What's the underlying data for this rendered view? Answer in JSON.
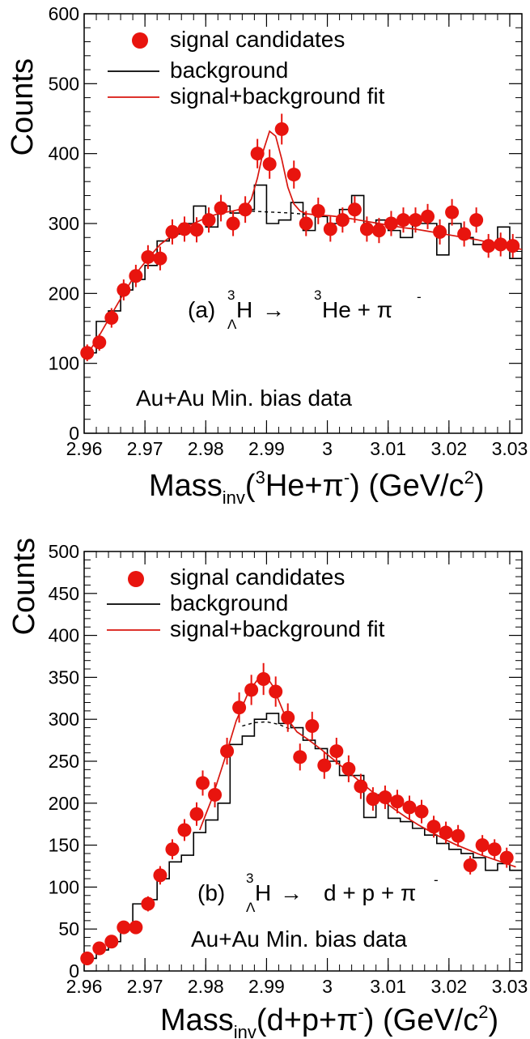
{
  "colors": {
    "signal": "#e8140e",
    "background": "#000000",
    "fit": "#d8160f"
  },
  "chart_data": [
    {
      "type": "scatter",
      "panel": "a",
      "xlim": [
        2.96,
        3.032
      ],
      "ylim": [
        0,
        600
      ],
      "xticks": [
        2.96,
        2.97,
        2.98,
        2.99,
        3.0,
        3.01,
        3.02,
        3.03
      ],
      "xtick_labels": [
        "2.96",
        "2.97",
        "2.98",
        "2.99",
        "3",
        "3.01",
        "3.02",
        "3.03"
      ],
      "yticks": [
        0,
        100,
        200,
        300,
        400,
        500,
        600
      ],
      "ytick_labels": [
        "0",
        "100",
        "200",
        "300",
        "400",
        "500",
        "600"
      ],
      "ylabel": "Counts",
      "xlabel": {
        "pre": "Mass",
        "sub": "inv",
        "paren_open": "(",
        "sup1": "3",
        "mid": "He+π",
        "sup2": "-",
        "close": ") (GeV/c",
        "sup3": "2",
        "end": ")"
      },
      "legend": {
        "position": "top",
        "entries": [
          "signal candidates",
          "background",
          "signal+background fit"
        ]
      },
      "annotations": {
        "reaction": {
          "prefix": "(a)",
          "pre_sup": "3",
          "pre_sub": "Λ",
          "lhs": "H",
          "arrow": "→",
          "sup2": "3",
          "rhs": "He + π",
          "sup3": "-"
        },
        "dataset": "Au+Au Min. bias data"
      },
      "signal": {
        "name": "signal candidates",
        "x": [
          2.9605,
          2.9625,
          2.9645,
          2.9665,
          2.9685,
          2.9705,
          2.9725,
          2.9745,
          2.9765,
          2.9785,
          2.9805,
          2.9825,
          2.9845,
          2.9865,
          2.9885,
          2.9905,
          2.9925,
          2.9945,
          2.9965,
          2.9985,
          3.0005,
          3.0025,
          3.0045,
          3.0065,
          3.0085,
          3.0105,
          3.0125,
          3.0145,
          3.0165,
          3.0185,
          3.0205,
          3.0225,
          3.0245,
          3.0265,
          3.0285,
          3.0305
        ],
        "y": [
          115,
          130,
          165,
          205,
          225,
          252,
          250,
          288,
          292,
          291,
          305,
          322,
          300,
          320,
          400,
          385,
          435,
          370,
          300,
          318,
          292,
          305,
          320,
          292,
          290,
          300,
          305,
          305,
          310,
          288,
          316,
          285,
          305,
          268,
          270,
          268
        ],
        "yerr": [
          12,
          12,
          14,
          15,
          16,
          17,
          17,
          18,
          18,
          18,
          18,
          19,
          18,
          19,
          21,
          21,
          22,
          20,
          18,
          19,
          18,
          18,
          19,
          18,
          18,
          18,
          18,
          18,
          18,
          18,
          19,
          18,
          18,
          17,
          17,
          17
        ]
      },
      "background": {
        "name": "background",
        "edges": [
          2.96,
          2.962,
          2.964,
          2.966,
          2.968,
          2.97,
          2.972,
          2.974,
          2.976,
          2.978,
          2.98,
          2.982,
          2.984,
          2.986,
          2.988,
          2.99,
          2.992,
          2.994,
          2.996,
          2.998,
          3.0,
          3.002,
          3.004,
          3.006,
          3.008,
          3.01,
          3.012,
          3.014,
          3.016,
          3.018,
          3.02,
          3.022,
          3.024,
          3.026,
          3.028,
          3.03,
          3.032
        ],
        "counts": [
          115,
          160,
          175,
          205,
          220,
          240,
          275,
          285,
          300,
          325,
          295,
          325,
          315,
          320,
          355,
          300,
          305,
          330,
          290,
          310,
          300,
          320,
          340,
          290,
          305,
          290,
          280,
          300,
          300,
          255,
          300,
          280,
          270,
          270,
          295,
          250
        ]
      },
      "fit": {
        "name": "signal+background fit",
        "x": [
          2.9605,
          2.9625,
          2.9645,
          2.9665,
          2.9685,
          2.9705,
          2.9725,
          2.9745,
          2.9765,
          2.9785,
          2.9805,
          2.9825,
          2.9845,
          2.9865,
          2.9875,
          2.9885,
          2.9895,
          2.9905,
          2.9915,
          2.9925,
          2.9935,
          2.9945,
          2.9955,
          2.9965,
          2.9985,
          3.0005,
          3.0025,
          3.0045,
          3.0065,
          3.0085,
          3.0105,
          3.0125,
          3.0145,
          3.0165,
          3.0185,
          3.0205,
          3.0225,
          3.0245,
          3.0265,
          3.0285,
          3.0305,
          3.032
        ],
        "y": [
          112,
          140,
          170,
          200,
          228,
          250,
          270,
          283,
          294,
          302,
          310,
          315,
          318,
          322,
          335,
          365,
          405,
          432,
          425,
          392,
          352,
          328,
          318,
          314,
          312,
          311,
          309,
          306,
          303,
          300,
          297,
          294,
          292,
          289,
          286,
          283,
          280,
          277,
          273,
          269,
          265,
          263
        ]
      },
      "bkg_fit": {
        "x": [
          2.9865,
          2.989,
          2.9915,
          2.994,
          2.9965
        ],
        "y": [
          318,
          317,
          316,
          315,
          313
        ]
      }
    },
    {
      "type": "scatter",
      "panel": "b",
      "xlim": [
        2.96,
        3.032
      ],
      "ylim": [
        0,
        500
      ],
      "xticks": [
        2.96,
        2.97,
        2.98,
        2.99,
        3.0,
        3.01,
        3.02,
        3.03
      ],
      "xtick_labels": [
        "2.96",
        "2.97",
        "2.98",
        "2.99",
        "3",
        "3.01",
        "3.02",
        "3.03"
      ],
      "yticks": [
        0,
        50,
        100,
        150,
        200,
        250,
        300,
        350,
        400,
        450,
        500
      ],
      "ytick_labels": [
        "0",
        "50",
        "100",
        "150",
        "200",
        "250",
        "300",
        "350",
        "400",
        "450",
        "500"
      ],
      "ylabel": "Counts",
      "xlabel": {
        "pre": "Mass",
        "sub": "inv",
        "mid": "(d+p+π",
        "sup2": "-",
        "close": ") (GeV/c",
        "sup3": "2",
        "end": ")"
      },
      "legend": {
        "position": "top",
        "entries": [
          "signal candidates",
          "background",
          "signal+background fit"
        ]
      },
      "annotations": {
        "reaction": {
          "prefix": "(b)",
          "pre_sup": "3",
          "pre_sub": "Λ",
          "lhs": "H",
          "arrow": "→",
          "rhs": "d + p + π",
          "sup3": "-"
        },
        "dataset": "Au+Au Min. bias data"
      },
      "signal": {
        "name": "signal candidates",
        "x": [
          2.9605,
          2.9625,
          2.9645,
          2.9665,
          2.9685,
          2.9705,
          2.9725,
          2.9745,
          2.9765,
          2.9785,
          2.9795,
          2.9815,
          2.9835,
          2.9855,
          2.9875,
          2.9895,
          2.9915,
          2.9935,
          2.9955,
          2.9975,
          2.9995,
          3.0015,
          3.0035,
          3.0055,
          3.0075,
          3.0095,
          3.0115,
          3.0135,
          3.0155,
          3.0175,
          3.0195,
          3.0215,
          3.0235,
          3.0255,
          3.0275,
          3.0295
        ],
        "y": [
          15,
          27,
          35,
          52,
          52,
          80,
          114,
          145,
          168,
          187,
          224,
          210,
          262,
          314,
          335,
          348,
          333,
          302,
          255,
          292,
          245,
          262,
          241,
          220,
          205,
          207,
          202,
          195,
          190,
          172,
          165,
          161,
          126,
          150,
          145,
          135
        ],
        "yerr": [
          4,
          5,
          6,
          7,
          7,
          9,
          11,
          12,
          13,
          14,
          15,
          15,
          16,
          18,
          18,
          19,
          18,
          17,
          16,
          17,
          16,
          16,
          16,
          15,
          14,
          14,
          14,
          14,
          14,
          13,
          13,
          13,
          11,
          12,
          12,
          12
        ]
      },
      "background": {
        "name": "background",
        "edges": [
          2.96,
          2.962,
          2.964,
          2.966,
          2.968,
          2.97,
          2.972,
          2.974,
          2.976,
          2.978,
          2.98,
          2.982,
          2.984,
          2.986,
          2.988,
          2.99,
          2.992,
          2.994,
          2.996,
          2.998,
          3.0,
          3.002,
          3.004,
          3.006,
          3.008,
          3.01,
          3.012,
          3.014,
          3.016,
          3.018,
          3.02,
          3.022,
          3.024,
          3.026,
          3.028,
          3.03,
          3.032
        ],
        "counts": [
          15,
          25,
          35,
          55,
          80,
          85,
          110,
          130,
          138,
          165,
          180,
          200,
          270,
          280,
          300,
          307,
          295,
          290,
          275,
          265,
          250,
          233,
          233,
          183,
          210,
          182,
          178,
          170,
          162,
          152,
          145,
          140,
          135,
          120,
          128,
          120
        ]
      },
      "fit": {
        "name": "signal+background fit",
        "x": [
          2.979,
          2.981,
          2.983,
          2.985,
          2.987,
          2.989,
          2.9895,
          2.991,
          2.993,
          2.995,
          2.997,
          2.999,
          3.001,
          3.003,
          3.005,
          3.007,
          3.009,
          3.011,
          3.013,
          3.015,
          3.017,
          3.019,
          3.021,
          3.023,
          3.025,
          3.027,
          3.029,
          3.031
        ],
        "y": [
          168,
          205,
          250,
          298,
          332,
          352,
          356,
          340,
          305,
          285,
          275,
          264,
          252,
          240,
          228,
          216,
          204,
          193,
          183,
          174,
          166,
          158,
          151,
          145,
          139,
          134,
          129,
          124
        ]
      },
      "bkg_fit": {
        "x": [
          2.986,
          2.988,
          2.99,
          2.992,
          2.994
        ],
        "y": [
          292,
          296,
          297,
          294,
          288
        ]
      }
    }
  ]
}
